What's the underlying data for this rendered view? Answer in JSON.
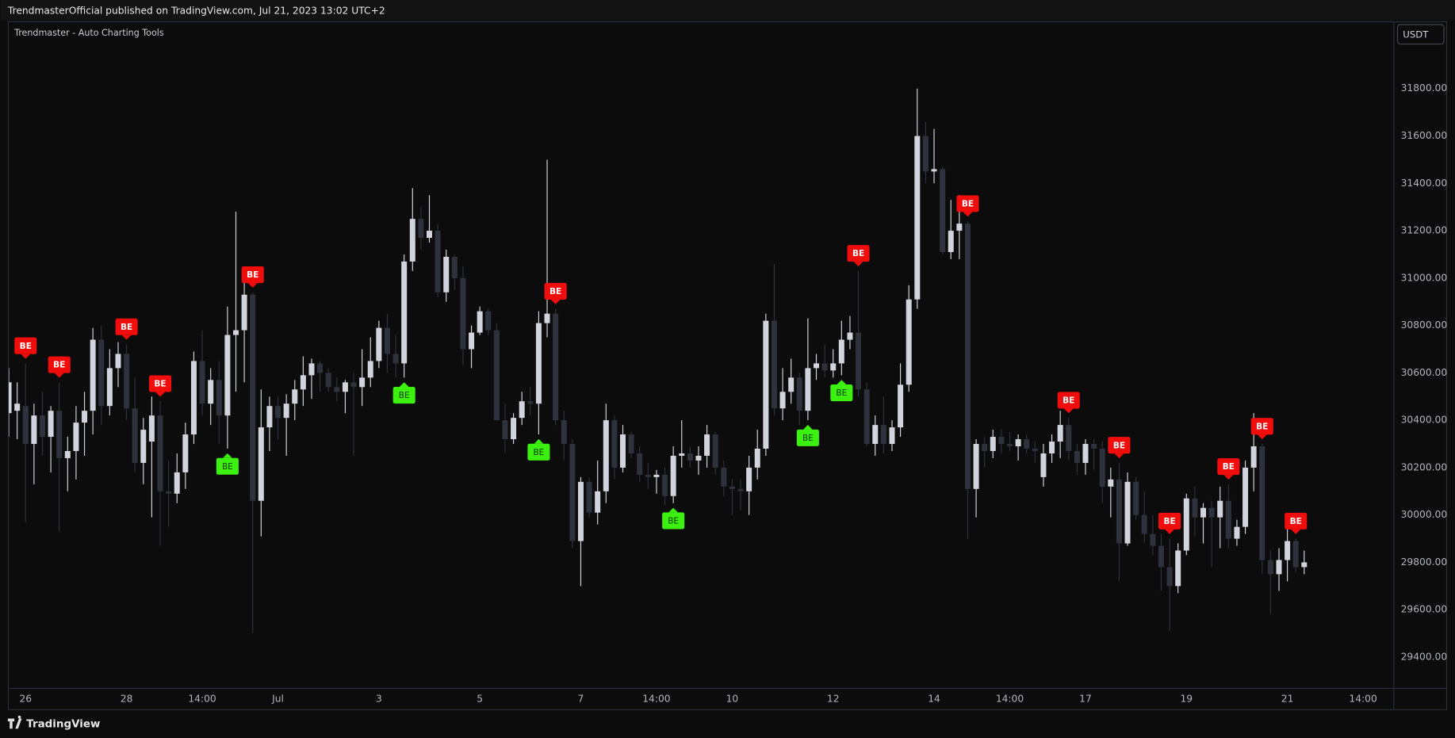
{
  "header": {
    "title": "TrendmasterOfficial published on TradingView.com, Jul 21, 2023 13:02 UTC+2"
  },
  "footer": {
    "brand": "TradingView"
  },
  "chart_data": {
    "type": "candlestick",
    "title": "Trendmaster - Auto Charting Tools",
    "currency": "USDT",
    "up_color": "#d1d4dc",
    "down_color": "#2e323d",
    "grid": false,
    "xlim": [
      0,
      164.6
    ],
    "xticks": [
      {
        "value": 2,
        "label": "26"
      },
      {
        "value": 14,
        "label": "28"
      },
      {
        "value": 23,
        "label": "14:00"
      },
      {
        "value": 32,
        "label": "Jul"
      },
      {
        "value": 44,
        "label": "3"
      },
      {
        "value": 56,
        "label": "5"
      },
      {
        "value": 68,
        "label": "7"
      },
      {
        "value": 77,
        "label": "14:00"
      },
      {
        "value": 86,
        "label": "10"
      },
      {
        "value": 98,
        "label": "12"
      },
      {
        "value": 110,
        "label": "14"
      },
      {
        "value": 119,
        "label": "14:00"
      },
      {
        "value": 128,
        "label": "17"
      },
      {
        "value": 140,
        "label": "19"
      },
      {
        "value": 152,
        "label": "21"
      },
      {
        "value": 161,
        "label": "14:00"
      }
    ],
    "ylim": [
      29270,
      32080
    ],
    "yticks": [
      {
        "value": 29400,
        "label": "29400.00"
      },
      {
        "value": 29600,
        "label": "29600.00"
      },
      {
        "value": 29800,
        "label": "29800.00"
      },
      {
        "value": 30000,
        "label": "30000.00"
      },
      {
        "value": 30200,
        "label": "30200.00"
      },
      {
        "value": 30400,
        "label": "30400.00"
      },
      {
        "value": 30600,
        "label": "30600.00"
      },
      {
        "value": 30800,
        "label": "30800.00"
      },
      {
        "value": 31000,
        "label": "31000.00"
      },
      {
        "value": 31200,
        "label": "31200.00"
      },
      {
        "value": 31400,
        "label": "31400.00"
      },
      {
        "value": 31600,
        "label": "31600.00"
      },
      {
        "value": 31800,
        "label": "31800.00"
      }
    ],
    "open": [
      30430,
      30440,
      30460,
      30300,
      30420,
      30330,
      30440,
      30240,
      30270,
      30390,
      30440,
      30740,
      30460,
      30620,
      30680,
      30450,
      30220,
      30310,
      30420,
      30100,
      30090,
      30180,
      30340,
      30650,
      30470,
      30570,
      30420,
      30760,
      30780,
      30930,
      30060,
      30370,
      30460,
      30410,
      30470,
      30530,
      30590,
      30640,
      30600,
      30540,
      30520,
      30560,
      30540,
      30580,
      30650,
      30790,
      30680,
      30640,
      31070,
      31250,
      31170,
      31200,
      30940,
      31090,
      31000,
      30700,
      30770,
      30860,
      30780,
      30400,
      30320,
      30410,
      30480,
      30470,
      30810,
      30850,
      30400,
      30300,
      29890,
      30140,
      30010,
      30100,
      30400,
      30200,
      30340,
      30260,
      30170,
      30160,
      30170,
      30080,
      30250,
      30260,
      30230,
      30250,
      30340,
      30200,
      30120,
      30110,
      30100,
      30200,
      30280,
      30820,
      30450,
      30520,
      30580,
      30440,
      30620,
      30640,
      30610,
      30640,
      30740,
      30770,
      30530,
      30300,
      30380,
      30300,
      30370,
      30550,
      30910,
      31600,
      31450,
      31460,
      31110,
      31200,
      31230,
      30110,
      30300,
      30270,
      30330,
      30300,
      30290,
      30320,
      30280,
      30160,
      30260,
      30310,
      30380,
      30270,
      30220,
      30300,
      30280,
      30120,
      30150,
      29880,
      30140,
      30000,
      29920,
      29870,
      29780,
      29700,
      29850,
      30070,
      29990,
      30030,
      29990,
      30060,
      29900,
      29950,
      30200,
      30290,
      29810,
      29750,
      29810,
      29890,
      29780
    ],
    "high": [
      30620,
      30560,
      30640,
      30470,
      30520,
      30460,
      30560,
      30330,
      30460,
      30520,
      30790,
      30800,
      30700,
      30730,
      30720,
      30580,
      30410,
      30500,
      30480,
      30230,
      30260,
      30390,
      30690,
      30780,
      30620,
      30650,
      30880,
      31280,
      31000,
      30940,
      30530,
      30500,
      30500,
      30510,
      30570,
      30670,
      30660,
      30650,
      30620,
      30580,
      30570,
      30600,
      30700,
      30750,
      30820,
      30850,
      30760,
      31100,
      31380,
      31300,
      31350,
      31230,
      31120,
      31100,
      31050,
      30800,
      30880,
      30870,
      30810,
      30470,
      30430,
      30520,
      30540,
      30860,
      31500,
      30870,
      30440,
      30320,
      30160,
      30160,
      30230,
      30470,
      30420,
      30380,
      30350,
      30290,
      30220,
      30190,
      30200,
      30290,
      30400,
      30290,
      30290,
      30380,
      30350,
      30230,
      30150,
      30150,
      30250,
      30360,
      30850,
      31060,
      30620,
      30660,
      30600,
      30830,
      30680,
      30720,
      30700,
      30820,
      30840,
      31030,
      30560,
      30420,
      30500,
      30400,
      30640,
      30970,
      31800,
      31660,
      31630,
      31470,
      31330,
      31350,
      31240,
      30320,
      30330,
      30360,
      30360,
      30350,
      30340,
      30340,
      30310,
      30300,
      30340,
      30440,
      30410,
      30300,
      30320,
      30320,
      30310,
      30200,
      30220,
      30180,
      30160,
      30100,
      30000,
      29920,
      29900,
      29880,
      30090,
      30120,
      30050,
      30060,
      30120,
      30130,
      29980,
      30230,
      30430,
      30300,
      29850,
      29860,
      29950,
      29900,
      29850
    ],
    "low": [
      30330,
      30320,
      29970,
      30130,
      30250,
      30180,
      29930,
      30100,
      30150,
      30250,
      30340,
      30380,
      30420,
      30540,
      30400,
      30180,
      30130,
      29990,
      29870,
      29950,
      30050,
      30110,
      30300,
      30420,
      30380,
      30300,
      30280,
      30520,
      30560,
      29500,
      29910,
      30270,
      30320,
      30250,
      30400,
      30460,
      30490,
      30520,
      30520,
      30480,
      30430,
      30250,
      30460,
      30540,
      30620,
      30600,
      30580,
      30580,
      31030,
      31120,
      31150,
      30920,
      30900,
      30950,
      30630,
      30620,
      30760,
      30760,
      30400,
      30260,
      30300,
      30380,
      30420,
      30340,
      30750,
      30380,
      30230,
      29860,
      29700,
      29990,
      29960,
      30050,
      30150,
      30180,
      30240,
      30140,
      30110,
      30090,
      30040,
      30050,
      30200,
      30200,
      30170,
      30200,
      30170,
      30080,
      30000,
      30020,
      30000,
      30150,
      30250,
      30420,
      30400,
      30470,
      30380,
      30400,
      30570,
      30580,
      30580,
      30590,
      30700,
      30500,
      30290,
      30250,
      30260,
      30270,
      30330,
      30520,
      30870,
      31400,
      31400,
      31100,
      31080,
      31080,
      29900,
      29990,
      30200,
      30240,
      30260,
      30270,
      30230,
      30260,
      30220,
      30120,
      30220,
      30240,
      30230,
      30170,
      30170,
      30190,
      30050,
      29990,
      29720,
      29870,
      29980,
      29880,
      29830,
      29680,
      29510,
      29670,
      29830,
      29910,
      29880,
      29780,
      29860,
      29860,
      29870,
      29920,
      30100,
      29750,
      29580,
      29680,
      29720,
      29760,
      29750
    ],
    "close": [
      30560,
      30470,
      30300,
      30420,
      30330,
      30440,
      30240,
      30270,
      30390,
      30440,
      30740,
      30460,
      30620,
      30680,
      30450,
      30220,
      30360,
      30420,
      30100,
      30090,
      30180,
      30340,
      30650,
      30470,
      30570,
      30420,
      30760,
      30780,
      30930,
      30060,
      30370,
      30460,
      30410,
      30470,
      30530,
      30590,
      30640,
      30600,
      30540,
      30520,
      30560,
      30540,
      30580,
      30650,
      30790,
      30680,
      30640,
      31070,
      31250,
      31170,
      31200,
      30940,
      31090,
      31000,
      30700,
      30770,
      30860,
      30780,
      30400,
      30320,
      30410,
      30480,
      30470,
      30810,
      30850,
      30400,
      30300,
      29890,
      30140,
      30010,
      30100,
      30400,
      30200,
      30340,
      30260,
      30170,
      30160,
      30170,
      30080,
      30250,
      30260,
      30230,
      30250,
      30340,
      30200,
      30120,
      30110,
      30100,
      30200,
      30280,
      30820,
      30450,
      30520,
      30580,
      30440,
      30620,
      30640,
      30610,
      30640,
      30740,
      30770,
      30530,
      30300,
      30380,
      30300,
      30370,
      30550,
      30910,
      31600,
      31450,
      31460,
      31110,
      31200,
      31230,
      30110,
      30300,
      30270,
      30330,
      30300,
      30290,
      30320,
      30280,
      30270,
      30260,
      30310,
      30380,
      30270,
      30220,
      30300,
      30280,
      30120,
      30150,
      29880,
      30140,
      30000,
      29920,
      29870,
      29780,
      29700,
      29850,
      30070,
      29990,
      30030,
      29990,
      30060,
      29900,
      29950,
      30200,
      30290,
      29810,
      29750,
      29810,
      29890,
      29780,
      29800
    ],
    "signal_colors": {
      "above": "#f20d0d",
      "below": "#3cf00f"
    },
    "signals": [
      {
        "text": "BE",
        "side": "above",
        "index": 2
      },
      {
        "text": "BE",
        "side": "above",
        "index": 6
      },
      {
        "text": "BE",
        "side": "above",
        "index": 14
      },
      {
        "text": "BE",
        "side": "above",
        "index": 18
      },
      {
        "text": "BE",
        "side": "below",
        "index": 26
      },
      {
        "text": "BE",
        "side": "above",
        "index": 29
      },
      {
        "text": "BE",
        "side": "below",
        "index": 47
      },
      {
        "text": "BE",
        "side": "below",
        "index": 63
      },
      {
        "text": "BE",
        "side": "above",
        "index": 65
      },
      {
        "text": "BE",
        "side": "below",
        "index": 79
      },
      {
        "text": "BE",
        "side": "below",
        "index": 95
      },
      {
        "text": "BE",
        "side": "below",
        "index": 99
      },
      {
        "text": "BE",
        "side": "above",
        "index": 101
      },
      {
        "text": "BE",
        "side": "above",
        "index": 114
      },
      {
        "text": "BE",
        "side": "above",
        "index": 126
      },
      {
        "text": "BE",
        "side": "above",
        "index": 132
      },
      {
        "text": "BE",
        "side": "above",
        "index": 138
      },
      {
        "text": "BE",
        "side": "above",
        "index": 145
      },
      {
        "text": "BE",
        "side": "above",
        "index": 149
      },
      {
        "text": "BE",
        "side": "above",
        "index": 153
      }
    ]
  }
}
